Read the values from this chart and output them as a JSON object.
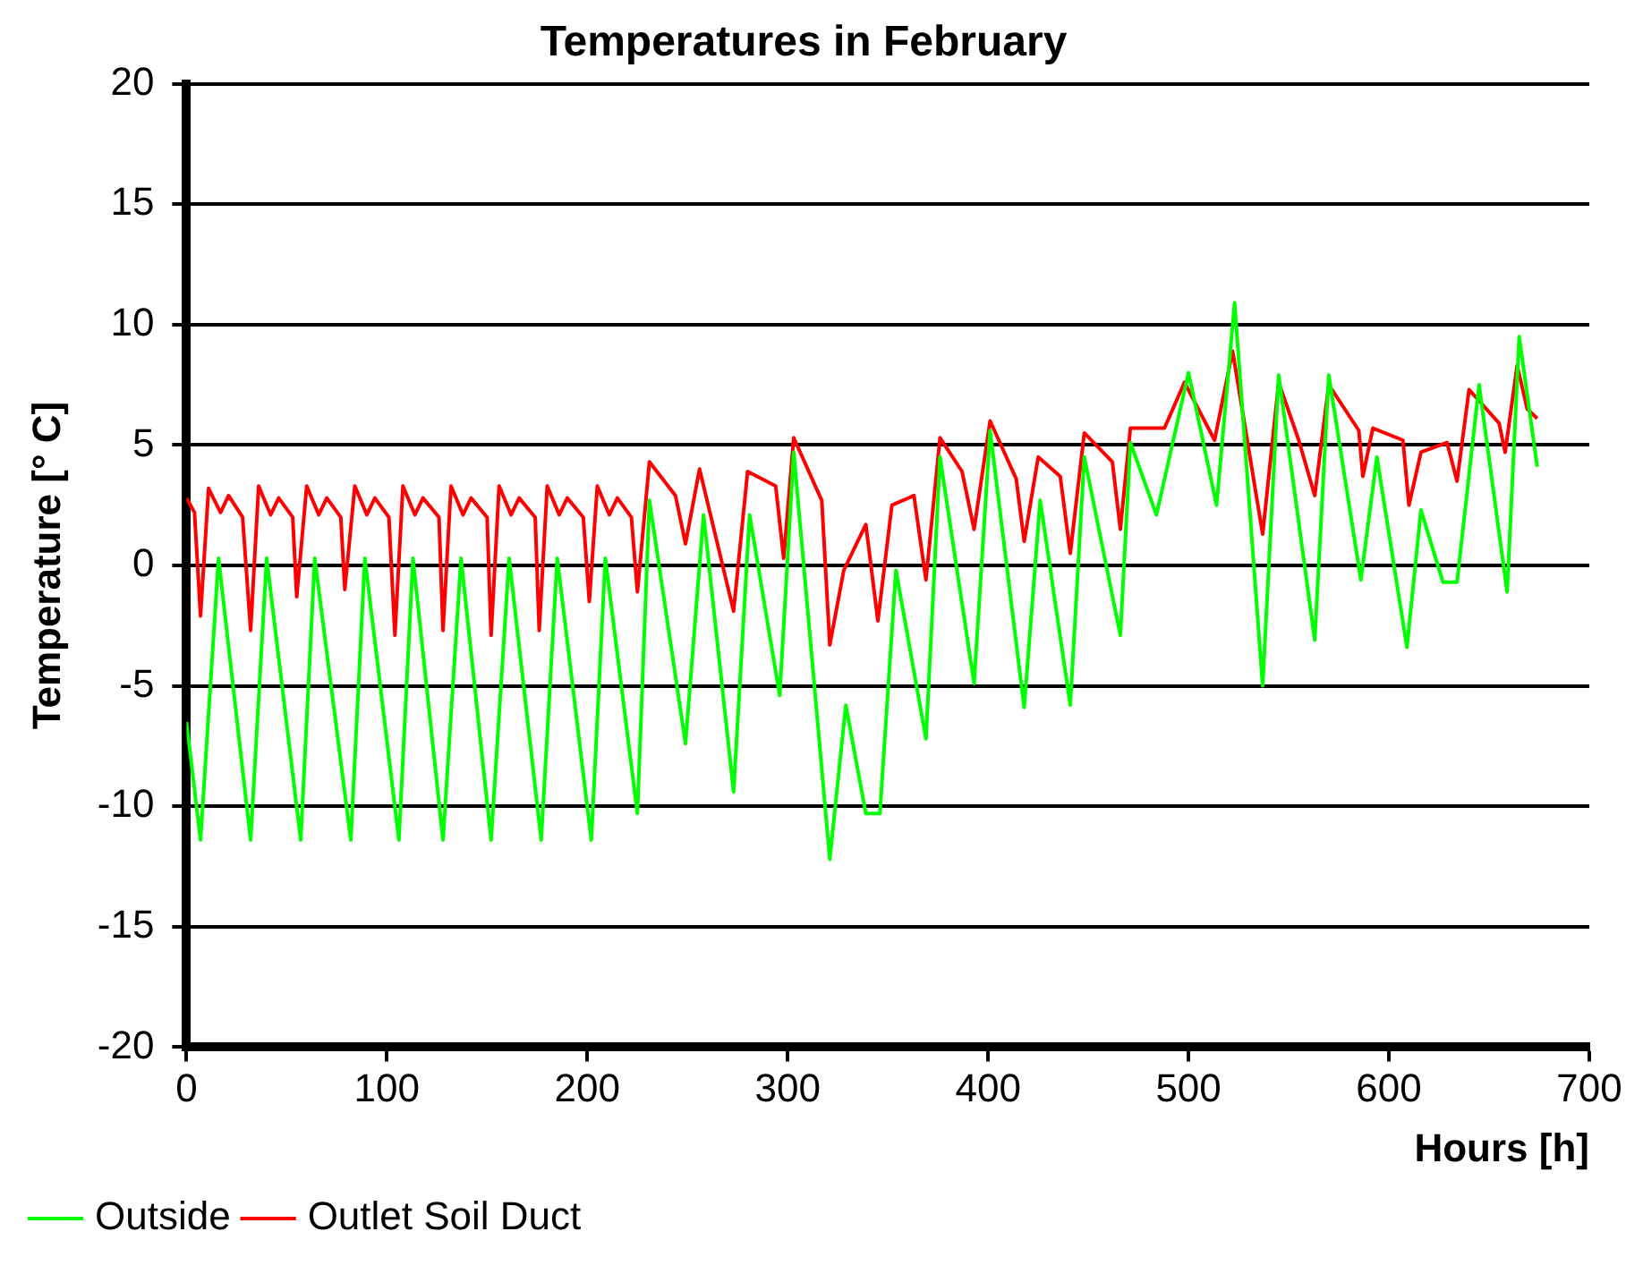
{
  "chart_data": {
    "type": "line",
    "title": "Temperatures in February",
    "xlabel": "Hours [h]",
    "ylabel": "Temperature [° C]",
    "xlim": [
      0,
      700
    ],
    "xticks": [
      0,
      100,
      200,
      300,
      400,
      500,
      600,
      700
    ],
    "ylim": [
      -20,
      20
    ],
    "yticks": [
      -20,
      -15,
      -10,
      -5,
      0,
      5,
      10,
      15,
      20
    ],
    "grid": "y",
    "legend": "bottom left",
    "marker": "none",
    "line_style": "solid",
    "series": [
      {
        "name": "Outside",
        "color": "#00ff00",
        "x": [
          0,
          7,
          16,
          32,
          40,
          57,
          64,
          82,
          89,
          106,
          113,
          128,
          137,
          152,
          161,
          177,
          185,
          202,
          209,
          225,
          231,
          249,
          258,
          273,
          281,
          296,
          303,
          321,
          329,
          339,
          346,
          354,
          369,
          376,
          393,
          401,
          418,
          426,
          441,
          448,
          466,
          471,
          484,
          500,
          514,
          523,
          537,
          545,
          563,
          570,
          586,
          594,
          609,
          616,
          627,
          634,
          645,
          659,
          665,
          674
        ],
        "values": [
          -6.5,
          -11.4,
          0.3,
          -11.4,
          0.3,
          -11.4,
          0.3,
          -11.4,
          0.3,
          -11.4,
          0.3,
          -11.4,
          0.3,
          -11.4,
          0.3,
          -11.4,
          0.3,
          -11.4,
          0.3,
          -10.3,
          2.7,
          -7.4,
          2.1,
          -9.4,
          2.1,
          -5.4,
          4.7,
          -12.2,
          -5.8,
          -10.3,
          -10.3,
          -0.2,
          -7.2,
          4.5,
          -4.9,
          5.6,
          -5.9,
          2.7,
          -5.8,
          4.5,
          -2.9,
          5.1,
          2.1,
          8.0,
          2.5,
          10.9,
          -5.0,
          7.9,
          -3.1,
          7.9,
          -0.6,
          4.5,
          -3.4,
          2.3,
          -0.7,
          -0.7,
          7.5,
          -1.1,
          9.5,
          4.1
        ]
      },
      {
        "name": "Outlet Soil Duct",
        "color": "#ff0000",
        "x": [
          0,
          4,
          7,
          11,
          17,
          21,
          28,
          32,
          36,
          42,
          46,
          53,
          55,
          60,
          66,
          70,
          77,
          79,
          84,
          90,
          94,
          101,
          104,
          108,
          114,
          118,
          126,
          128,
          132,
          138,
          142,
          150,
          152,
          156,
          162,
          166,
          174,
          176,
          180,
          186,
          190,
          198,
          201,
          205,
          211,
          215,
          222,
          225,
          231,
          244,
          249,
          256,
          273,
          280,
          294,
          298,
          303,
          317,
          321,
          328,
          339,
          345,
          352,
          363,
          369,
          376,
          387,
          393,
          401,
          414,
          418,
          425,
          436,
          441,
          448,
          462,
          466,
          471,
          488,
          498,
          513,
          522,
          537,
          545,
          555,
          563,
          570,
          585,
          587,
          592,
          607,
          610,
          616,
          629,
          634,
          640,
          655,
          658,
          664,
          669,
          674
        ],
        "values": [
          2.8,
          2.2,
          -2.1,
          3.2,
          2.2,
          2.9,
          2.0,
          -2.7,
          3.3,
          2.1,
          2.8,
          2.0,
          -1.3,
          3.3,
          2.1,
          2.8,
          2.0,
          -1.0,
          3.3,
          2.1,
          2.8,
          2.0,
          -2.9,
          3.3,
          2.1,
          2.8,
          2.0,
          -2.7,
          3.3,
          2.1,
          2.8,
          2.0,
          -2.9,
          3.3,
          2.1,
          2.8,
          2.0,
          -2.7,
          3.3,
          2.1,
          2.8,
          2.0,
          -1.5,
          3.3,
          2.1,
          2.8,
          2.0,
          -1.1,
          4.3,
          2.9,
          0.9,
          4.0,
          -1.9,
          3.9,
          3.3,
          0.3,
          5.3,
          2.7,
          -3.3,
          -0.2,
          1.7,
          -2.3,
          2.5,
          2.9,
          -0.6,
          5.3,
          3.9,
          1.5,
          6.0,
          3.6,
          1.0,
          4.5,
          3.7,
          0.5,
          5.5,
          4.3,
          1.5,
          5.7,
          5.7,
          7.6,
          5.2,
          8.9,
          1.3,
          7.6,
          5.2,
          2.9,
          7.5,
          5.6,
          3.7,
          5.7,
          5.2,
          2.5,
          4.7,
          5.1,
          3.5,
          7.3,
          5.9,
          4.7,
          8.3,
          6.5,
          6.1
        ]
      }
    ]
  }
}
